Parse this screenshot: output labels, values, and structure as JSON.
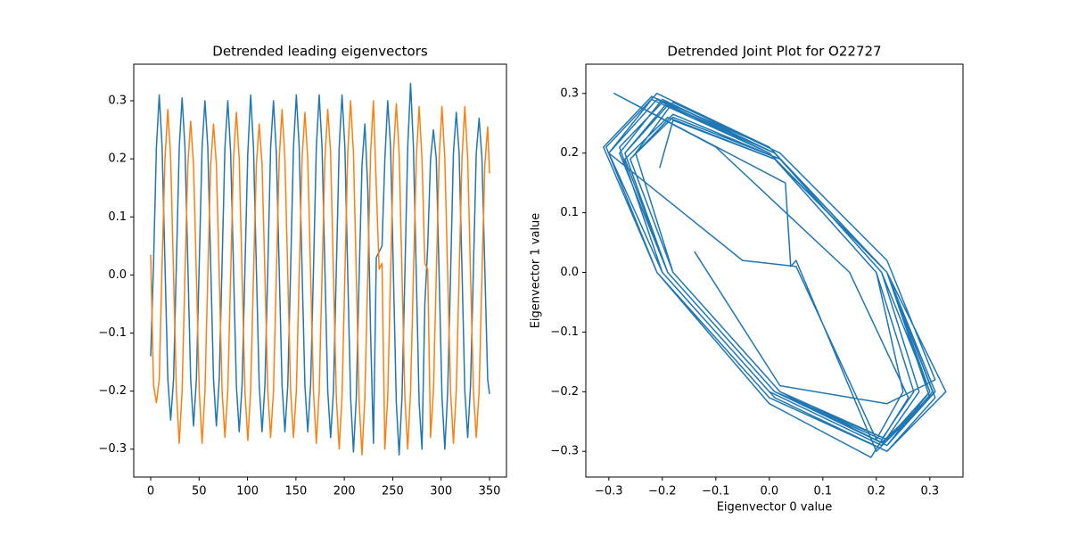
{
  "chart_data": [
    {
      "type": "line",
      "title": "Detrended leading eigenvectors",
      "x": [
        0,
        2.95,
        5.9,
        8.85,
        11.8,
        14.75,
        17.7,
        20.65,
        23.6,
        26.55,
        29.5,
        32.45,
        35.4,
        38.35,
        41.3,
        44.25,
        47.2,
        50.15,
        53.1,
        56.05,
        59,
        61.95,
        64.9,
        67.85,
        70.8,
        73.75,
        76.7,
        79.65,
        82.6,
        85.55,
        88.5,
        91.45,
        94.4,
        97.35,
        100.3,
        103.25,
        106.2,
        109.15,
        112.1,
        115.05,
        118,
        120.95,
        123.9,
        126.85,
        129.8,
        132.75,
        135.7,
        138.65,
        141.6,
        144.55,
        147.5,
        150.45,
        153.4,
        156.35,
        159.3,
        162.25,
        165.2,
        168.15,
        171.1,
        174.05,
        177,
        179.95,
        182.9,
        185.85,
        188.8,
        191.75,
        194.7,
        197.65,
        200.6,
        203.55,
        206.5,
        209.45,
        212.4,
        215.35,
        218.3,
        221.25,
        224.2,
        227.15,
        230.1,
        233.05,
        236,
        238.95,
        241.9,
        244.85,
        247.8,
        250.75,
        253.7,
        256.65,
        259.6,
        262.55,
        265.5,
        268.45,
        271.4,
        274.35,
        277.3,
        280.25,
        283.2,
        286.15,
        289.1,
        292.05,
        295,
        297.95,
        300.9,
        303.85,
        306.8,
        309.75,
        312.7,
        315.65,
        318.6,
        321.55,
        324.5,
        327.45,
        330.4,
        333.35,
        336.3,
        339.25,
        342.2,
        345.15,
        348.1,
        350
      ],
      "series": [
        {
          "color": "#1f77b4",
          "values": [
            -0.14,
            0.02,
            0.22,
            0.31,
            0.22,
            0.02,
            -0.18,
            -0.25,
            -0.18,
            0.02,
            0.22,
            0.305,
            0.22,
            0.02,
            -0.18,
            -0.26,
            -0.18,
            0.02,
            0.22,
            0.3,
            0.22,
            0.02,
            -0.18,
            -0.26,
            -0.18,
            0.02,
            0.22,
            0.3,
            0.21,
            0.01,
            -0.19,
            -0.27,
            -0.19,
            0.01,
            0.21,
            0.31,
            0.22,
            0.01,
            -0.19,
            -0.27,
            -0.19,
            0.01,
            0.22,
            0.3,
            0.21,
            0.01,
            -0.19,
            -0.27,
            -0.19,
            0.01,
            0.22,
            0.31,
            0.22,
            0.01,
            -0.19,
            -0.27,
            -0.19,
            0.01,
            0.22,
            0.31,
            0.22,
            0.01,
            -0.2,
            -0.28,
            -0.2,
            0.01,
            0.22,
            0.31,
            0.22,
            0.0,
            -0.21,
            -0.305,
            -0.21,
            0.0,
            0.19,
            0.26,
            0.15,
            -0.1,
            -0.29,
            0.03,
            0.04,
            0.05,
            0.2,
            0.3,
            0.22,
            0.0,
            -0.22,
            -0.31,
            -0.21,
            0.0,
            0.22,
            0.33,
            0.22,
            0.0,
            -0.22,
            -0.3,
            -0.05,
            0.05,
            0.2,
            0.25,
            0.2,
            0.0,
            -0.21,
            -0.3,
            -0.2,
            0.0,
            0.21,
            0.28,
            0.21,
            0.01,
            -0.2,
            -0.28,
            -0.19,
            0.01,
            0.21,
            0.27,
            0.2,
            0.01,
            -0.18,
            -0.205
          ]
        },
        {
          "color": "#ff7f0e",
          "values": [
            0.035,
            -0.19,
            -0.22,
            -0.18,
            0.02,
            0.2,
            0.285,
            0.2,
            0.0,
            -0.2,
            -0.29,
            -0.2,
            0.0,
            0.19,
            0.265,
            0.19,
            0.0,
            -0.2,
            -0.29,
            -0.2,
            0.0,
            0.19,
            0.26,
            0.19,
            0.0,
            -0.2,
            -0.28,
            -0.2,
            0.0,
            0.2,
            0.28,
            0.2,
            0.0,
            -0.2,
            -0.285,
            -0.2,
            0.0,
            0.19,
            0.26,
            0.19,
            0.0,
            -0.2,
            -0.28,
            -0.2,
            0.0,
            0.2,
            0.285,
            0.2,
            0.0,
            -0.2,
            -0.28,
            -0.2,
            0.0,
            0.2,
            0.28,
            0.2,
            0.0,
            -0.2,
            -0.29,
            -0.2,
            0.0,
            0.2,
            0.285,
            0.21,
            0.0,
            -0.21,
            -0.3,
            -0.21,
            0.0,
            0.21,
            0.3,
            0.21,
            0.0,
            -0.22,
            -0.31,
            -0.21,
            0.0,
            0.21,
            0.3,
            0.15,
            0.01,
            0.02,
            -0.3,
            -0.21,
            0.0,
            0.21,
            0.295,
            0.21,
            0.0,
            -0.21,
            -0.3,
            -0.2,
            0.0,
            0.2,
            0.29,
            0.2,
            0.02,
            0.01,
            -0.28,
            -0.2,
            0.0,
            0.2,
            0.29,
            0.2,
            0.0,
            -0.2,
            -0.29,
            -0.2,
            0.0,
            0.2,
            0.29,
            0.2,
            0.0,
            -0.2,
            -0.28,
            -0.2,
            0.0,
            0.19,
            0.255,
            0.175
          ]
        }
      ],
      "xlim": [
        -17.5,
        367.5
      ],
      "xticks": [
        0,
        50,
        100,
        150,
        200,
        250,
        300,
        350
      ],
      "ylim": [
        -0.348,
        0.363
      ],
      "yticks": [
        {
          "value": -0.3,
          "label": "−0.3"
        },
        {
          "value": -0.2,
          "label": "−0.2"
        },
        {
          "value": -0.1,
          "label": "−0.1"
        },
        {
          "value": 0,
          "label": "0.0"
        },
        0.1,
        0.2,
        0.3
      ]
    },
    {
      "type": "joint",
      "title": "Detrended Joint Plot for O22727",
      "xlabel": "Eigenvector 0 value",
      "ylabel": "Eigenvector 1 value",
      "color": "#1f77b4",
      "xlim": [
        -0.343,
        0.362
      ],
      "xticks": [
        {
          "value": -0.3,
          "label": "−0.3"
        },
        {
          "value": -0.2,
          "label": "−0.2"
        },
        {
          "value": -0.1,
          "label": "−0.1"
        },
        {
          "value": 0,
          "label": "0.0"
        },
        0.1,
        0.2,
        0.3
      ],
      "ylim": [
        -0.343,
        0.349
      ],
      "yticks": [
        {
          "value": -0.3,
          "label": "−0.3"
        },
        {
          "value": -0.2,
          "label": "−0.2"
        },
        {
          "value": -0.1,
          "label": "−0.1"
        },
        {
          "value": 0,
          "label": "0.0"
        },
        0.1,
        0.2,
        0.3
      ]
    }
  ]
}
